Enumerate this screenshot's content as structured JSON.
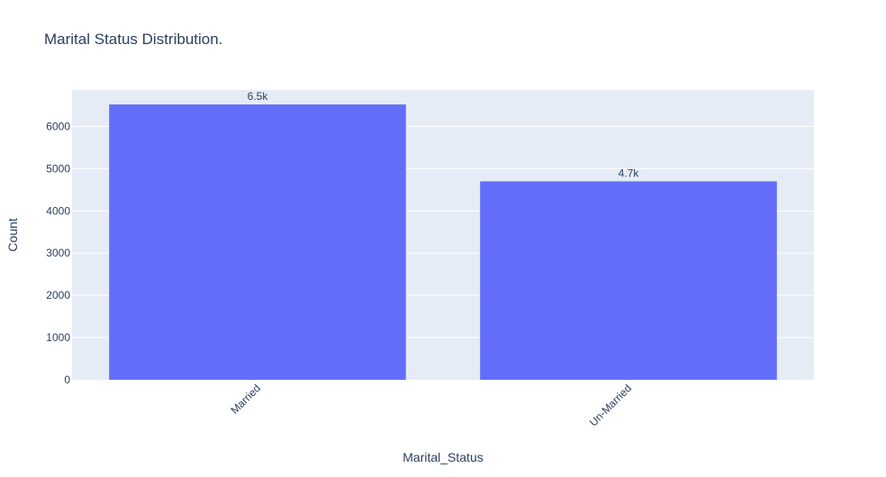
{
  "chart_data": {
    "type": "bar",
    "title": "Marital Status Distribution.",
    "xlabel": "Marital_Status",
    "ylabel": "Count",
    "categories": [
      "Married",
      "Un-Married"
    ],
    "values": [
      6520,
      4700
    ],
    "data_labels": [
      "6.5k",
      "4.7k"
    ],
    "ylim": [
      0,
      6863
    ],
    "yticks": [
      0,
      1000,
      2000,
      3000,
      4000,
      5000,
      6000
    ],
    "ytick_labels": [
      "0",
      "1000",
      "2000",
      "3000",
      "4000",
      "5000",
      "6000"
    ],
    "grid": true,
    "legend": "none",
    "colors": {
      "bar": "#636efa",
      "plot_background": "#e5ecf6",
      "gridline": "#ffffff",
      "text": "#2a3f5f"
    }
  }
}
